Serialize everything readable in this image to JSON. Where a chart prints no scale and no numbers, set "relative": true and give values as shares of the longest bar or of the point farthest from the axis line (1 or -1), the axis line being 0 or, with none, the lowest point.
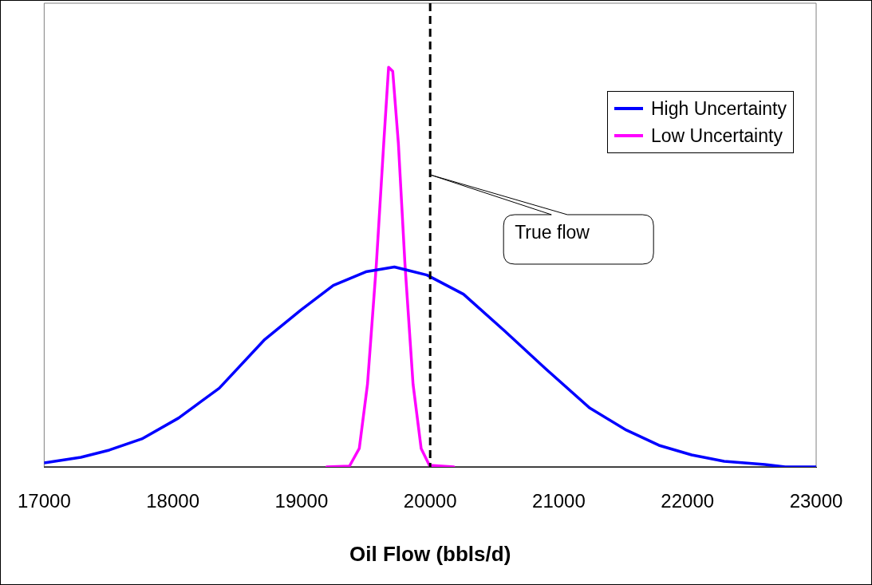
{
  "chart_data": {
    "type": "line",
    "xlabel": "Oil Flow (bbls/d)",
    "relative": true,
    "xlim": [
      17000,
      23000
    ],
    "xticks": [
      17000,
      18000,
      19000,
      20000,
      21000,
      22000,
      23000
    ],
    "grid": false,
    "legend": "top right",
    "marker": "none",
    "line_style": "solid",
    "series": [
      {
        "name": "High Uncertainty",
        "color": "#0000ff",
        "x": [
          17000,
          17285,
          17506,
          17759,
          18044,
          18361,
          18709,
          18994,
          19247,
          19500,
          19722,
          19975,
          20259,
          20576,
          20892,
          21241,
          21525,
          21778,
          22032,
          22285,
          22601,
          22759,
          23000
        ],
        "values": [
          0.01,
          0.024,
          0.042,
          0.07,
          0.122,
          0.197,
          0.317,
          0.392,
          0.454,
          0.488,
          0.5,
          0.48,
          0.432,
          0.341,
          0.247,
          0.147,
          0.092,
          0.054,
          0.03,
          0.014,
          0.006,
          0,
          0
        ]
      },
      {
        "name": "Low Uncertainty",
        "color": "#ff00ff",
        "x": [
          19196,
          19373,
          19449,
          19513,
          19582,
          19639,
          19677,
          19709,
          19753,
          19804,
          19867,
          19930,
          19994,
          20184
        ],
        "values": [
          0,
          0.002,
          0.046,
          0.207,
          0.508,
          0.809,
          1,
          0.99,
          0.809,
          0.508,
          0.207,
          0.046,
          0.004,
          0
        ]
      }
    ],
    "ref_lines": [
      {
        "axis": "x",
        "value": 20000,
        "color": "#000000",
        "line_style": "dashed"
      }
    ],
    "annotations": [
      "True flow"
    ]
  }
}
